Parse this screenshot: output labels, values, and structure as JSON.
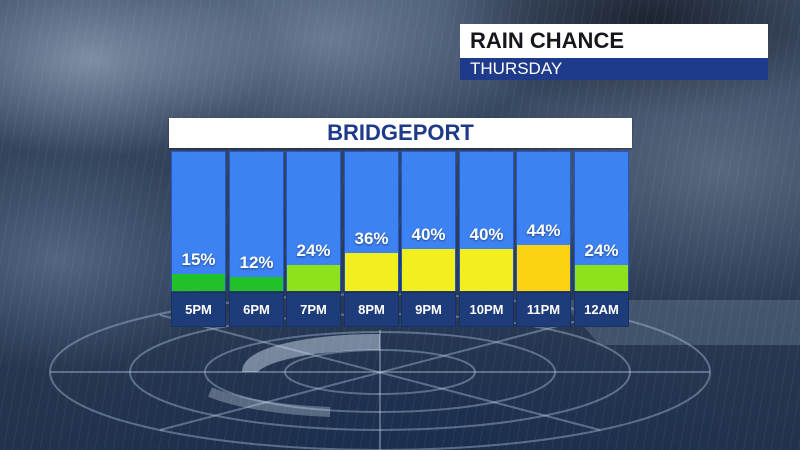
{
  "header": {
    "title": "RAIN CHANCE",
    "day": "THURSDAY"
  },
  "chart_data": {
    "type": "bar",
    "title": "BRIDGEPORT",
    "categories": [
      "5PM",
      "6PM",
      "7PM",
      "8PM",
      "9PM",
      "10PM",
      "11PM",
      "12AM"
    ],
    "values": [
      15,
      12,
      24,
      36,
      40,
      40,
      44,
      24
    ],
    "labels": [
      "15%",
      "12%",
      "24%",
      "36%",
      "40%",
      "40%",
      "44%",
      "24%"
    ],
    "ylim": [
      0,
      100
    ],
    "colors": [
      "#21c12a",
      "#21c12a",
      "#8de21c",
      "#f3ef1e",
      "#f3ef1e",
      "#f3ef1e",
      "#fbd313",
      "#8de21c"
    ],
    "bar_background": "#3d82f2",
    "time_bar_color": "#1e3b7a"
  }
}
